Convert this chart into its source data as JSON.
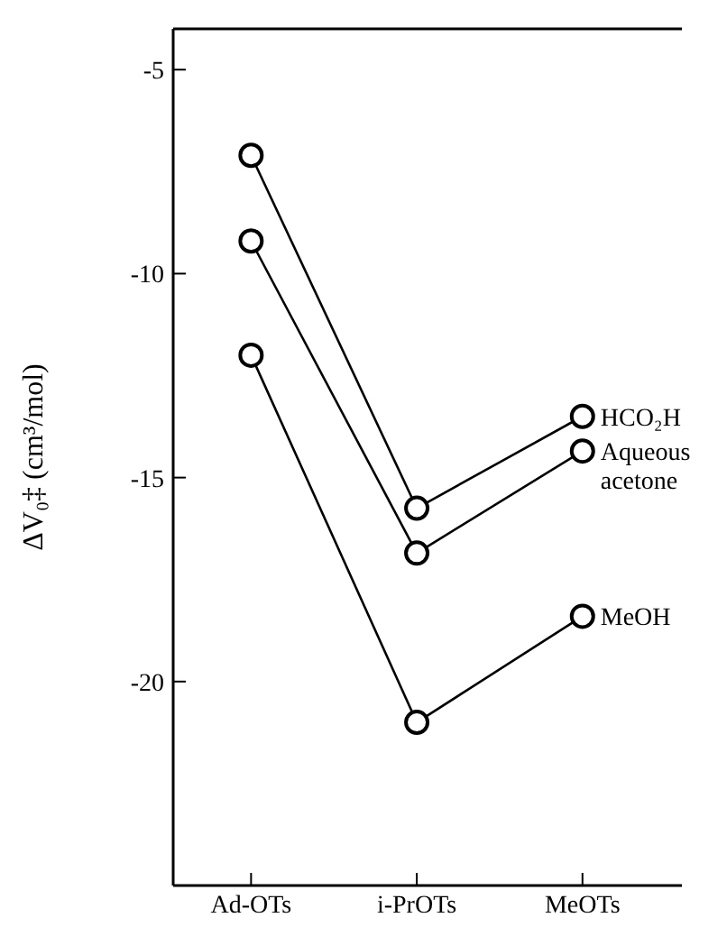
{
  "chart_data": {
    "type": "line",
    "ylabel": "ΔV₀‡ (cm³/mol)",
    "categories": [
      "Ad-OTs",
      "i-PrOTs",
      "MeOTs"
    ],
    "series": [
      {
        "name": "HCO₂H",
        "color": "#000000",
        "values": [
          -7.1,
          -15.75,
          -13.5
        ]
      },
      {
        "name": "Aqueous acetone",
        "color": "#000000",
        "values": [
          -9.2,
          -16.85,
          -14.35
        ]
      },
      {
        "name": "MeOH",
        "color": "#000000",
        "values": [
          -12.0,
          -21.0,
          -18.4
        ]
      }
    ],
    "ylim": [
      -25,
      -4
    ],
    "yticks": [
      -5,
      -10,
      -15,
      -20
    ],
    "marker": "circle",
    "line_style": "solid"
  }
}
